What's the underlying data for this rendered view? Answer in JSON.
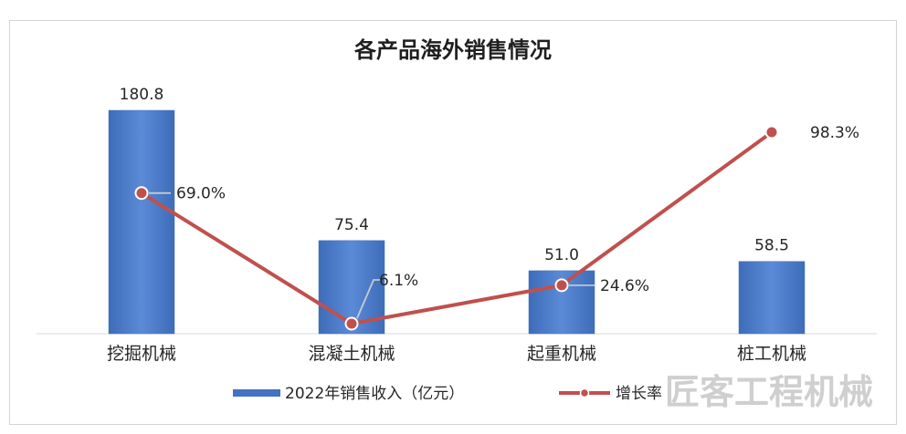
{
  "chart_data": {
    "type": "bar",
    "title": "各产品海外销售情况",
    "categories": [
      "挖掘机械",
      "混凝土机械",
      "起重机械",
      "桩工机械"
    ],
    "series": [
      {
        "name": "2022年销售收入（亿元）",
        "type": "bar",
        "values": [
          180.8,
          75.4,
          51.0,
          58.5
        ],
        "labels": [
          "180.8",
          "75.4",
          "51.0",
          "58.5"
        ]
      },
      {
        "name": "增长率",
        "type": "line",
        "values": [
          69.0,
          6.1,
          24.6,
          98.3
        ],
        "labels": [
          "69.0%",
          "6.1%",
          "24.6%",
          "98.3%"
        ]
      }
    ],
    "xlabel": "",
    "ylabel": "",
    "grid": false,
    "legend_position": "bottom"
  },
  "colors": {
    "bar": "#4472c4",
    "line": "#c0504d"
  },
  "watermark": "匠客工程机械"
}
